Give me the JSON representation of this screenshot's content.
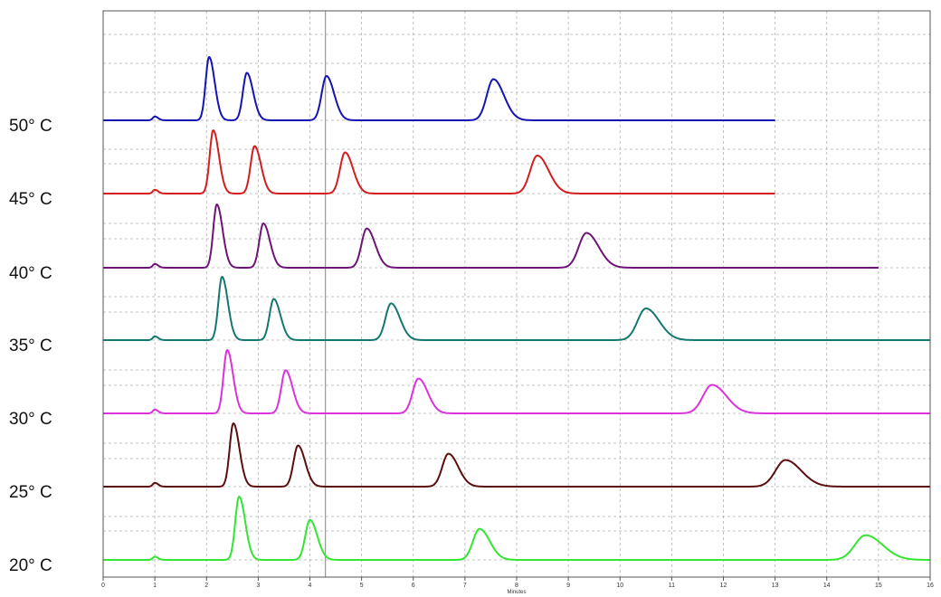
{
  "chart_data": {
    "type": "line",
    "xlabel": "Minutes",
    "xlim": [
      0,
      16
    ],
    "x_ticks": [
      "0",
      "1",
      "2",
      "3",
      "4",
      "5",
      "6",
      "7",
      "8",
      "9",
      "10",
      "11",
      "12",
      "13",
      "14",
      "15",
      "16"
    ],
    "grid": true,
    "cursor_line_x": 4.3,
    "legend": "left-side labels",
    "series": [
      {
        "name": "50° C",
        "color": "#1414b4",
        "x_end": 13,
        "peaks": [
          {
            "t": 1.0,
            "h": 0.06
          },
          {
            "t": 2.05,
            "h": 1.0
          },
          {
            "t": 2.78,
            "h": 0.75
          },
          {
            "t": 4.32,
            "h": 0.7
          },
          {
            "t": 7.55,
            "h": 0.65
          }
        ]
      },
      {
        "name": "45° C",
        "color": "#d21e1e",
        "x_end": 13,
        "peaks": [
          {
            "t": 1.0,
            "h": 0.06
          },
          {
            "t": 2.13,
            "h": 1.0
          },
          {
            "t": 2.93,
            "h": 0.75
          },
          {
            "t": 4.68,
            "h": 0.65
          },
          {
            "t": 8.4,
            "h": 0.6
          }
        ]
      },
      {
        "name": "40° C",
        "color": "#6e1478",
        "x_end": 15,
        "peaks": [
          {
            "t": 1.0,
            "h": 0.06
          },
          {
            "t": 2.2,
            "h": 1.0
          },
          {
            "t": 3.1,
            "h": 0.7
          },
          {
            "t": 5.1,
            "h": 0.62
          },
          {
            "t": 9.35,
            "h": 0.55
          }
        ]
      },
      {
        "name": "35° C",
        "color": "#14786e",
        "x_end": 16,
        "peaks": [
          {
            "t": 1.0,
            "h": 0.06
          },
          {
            "t": 2.3,
            "h": 1.0
          },
          {
            "t": 3.3,
            "h": 0.65
          },
          {
            "t": 5.57,
            "h": 0.58
          },
          {
            "t": 10.5,
            "h": 0.5
          }
        ]
      },
      {
        "name": "30° C",
        "color": "#dc32dc",
        "x_end": 16,
        "peaks": [
          {
            "t": 1.0,
            "h": 0.06
          },
          {
            "t": 2.4,
            "h": 1.0
          },
          {
            "t": 3.53,
            "h": 0.68
          },
          {
            "t": 6.1,
            "h": 0.55
          },
          {
            "t": 11.78,
            "h": 0.45
          }
        ]
      },
      {
        "name": "25° C",
        "color": "#5a0f0f",
        "x_end": 16,
        "peaks": [
          {
            "t": 1.0,
            "h": 0.06
          },
          {
            "t": 2.52,
            "h": 1.0
          },
          {
            "t": 3.77,
            "h": 0.65
          },
          {
            "t": 6.68,
            "h": 0.52
          },
          {
            "t": 13.2,
            "h": 0.42
          }
        ]
      },
      {
        "name": "20° C",
        "color": "#32e632",
        "x_end": 16,
        "peaks": [
          {
            "t": 1.0,
            "h": 0.05
          },
          {
            "t": 2.63,
            "h": 1.0
          },
          {
            "t": 4.0,
            "h": 0.63
          },
          {
            "t": 7.28,
            "h": 0.49
          },
          {
            "t": 14.75,
            "h": 0.39
          }
        ]
      }
    ]
  }
}
